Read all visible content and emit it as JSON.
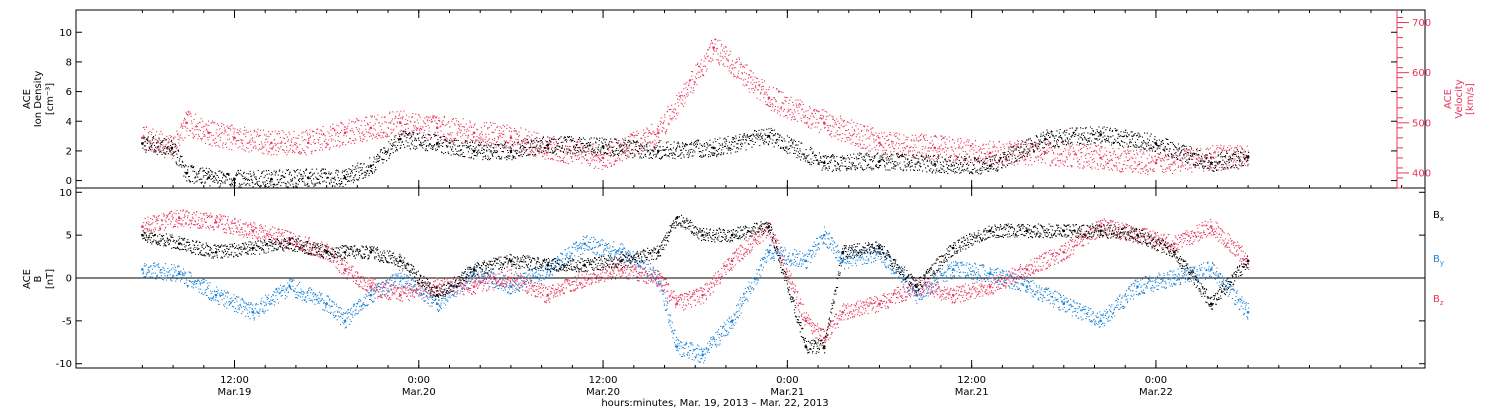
{
  "page": {
    "background": "#ffffff"
  },
  "colors": {
    "black": "#000000",
    "pink": "#e8365d",
    "blue": "#1e84d8"
  },
  "chart_data": [
    {
      "type": "scatter",
      "panel": "top",
      "ylabel_left_lines": [
        "ACE",
        "Ion Density",
        "[cm⁻³]"
      ],
      "ylabel_right_lines": [
        "ACE",
        "Velocity",
        "[km/s]"
      ],
      "ylim_left": [
        -0.5,
        11.5
      ],
      "yticks_left": [
        0,
        2,
        4,
        6,
        8,
        10
      ],
      "ylim_right": [
        370,
        725
      ],
      "yticks_right": [
        400,
        500,
        600,
        700
      ],
      "yminor_right_step": 20,
      "series": [
        {
          "axis": "left",
          "color": "#000000",
          "x": [
            0,
            0.08,
            0.12,
            0.18,
            0.25,
            0.35,
            0.45,
            0.55,
            0.62,
            0.7,
            0.8,
            0.9,
            1.0,
            1.1,
            1.25,
            1.4,
            1.55,
            1.7,
            1.85,
            2.0,
            2.15,
            2.3,
            2.45,
            2.6,
            2.75,
            2.9,
            3.0
          ],
          "y": [
            2.5,
            2.2,
            0.5,
            0.2,
            0.1,
            0.1,
            0.2,
            0.2,
            1.0,
            2.8,
            2.5,
            2.0,
            2.0,
            2.4,
            2.3,
            2.0,
            2.2,
            3.0,
            1.2,
            1.3,
            1.1,
            1.0,
            2.8,
            3.1,
            2.5,
            1.2,
            1.6
          ]
        },
        {
          "axis": "right",
          "color": "#e8365d",
          "x": [
            0,
            0.08,
            0.12,
            0.18,
            0.25,
            0.35,
            0.45,
            0.55,
            0.62,
            0.7,
            0.8,
            0.9,
            1.0,
            1.1,
            1.25,
            1.4,
            1.55,
            1.7,
            1.85,
            2.0,
            2.15,
            2.3,
            2.45,
            2.6,
            2.75,
            2.9,
            3.0
          ],
          "y": [
            470,
            450,
            500,
            480,
            470,
            460,
            460,
            480,
            490,
            500,
            490,
            480,
            470,
            450,
            430,
            480,
            650,
            550,
            500,
            460,
            450,
            440,
            440,
            430,
            420,
            430,
            430
          ]
        }
      ]
    },
    {
      "type": "scatter",
      "panel": "bottom",
      "ylabel_left_lines": [
        "ACE",
        "B",
        "[nT]"
      ],
      "ylim": [
        -10.5,
        10.5
      ],
      "yticks": [
        -10,
        -5,
        0,
        5,
        10
      ],
      "zero_line": true,
      "legend_position": "right",
      "series": [
        {
          "name": "Bx",
          "legend_main": "B",
          "legend_sub": "x",
          "color": "#000000",
          "x": [
            0,
            0.1,
            0.2,
            0.3,
            0.4,
            0.5,
            0.55,
            0.62,
            0.7,
            0.8,
            0.9,
            1.0,
            1.1,
            1.2,
            1.3,
            1.4,
            1.45,
            1.52,
            1.6,
            1.7,
            1.8,
            1.85,
            1.9,
            2.0,
            2.1,
            2.2,
            2.3,
            2.4,
            2.5,
            2.6,
            2.7,
            2.8,
            2.9,
            3.0
          ],
          "y": [
            5,
            4,
            3,
            3.5,
            4,
            3,
            3,
            3,
            2,
            -2,
            1,
            2,
            1.5,
            1.5,
            2,
            3,
            7,
            5,
            5,
            6,
            -8,
            -8,
            3,
            3.5,
            -1,
            3.5,
            5.5,
            5.5,
            5.5,
            5.5,
            5,
            3,
            -3,
            2
          ]
        },
        {
          "name": "By",
          "legend_main": "B",
          "legend_sub": "y",
          "color": "#1e84d8",
          "x": [
            0,
            0.1,
            0.2,
            0.3,
            0.4,
            0.5,
            0.55,
            0.62,
            0.7,
            0.8,
            0.9,
            1.0,
            1.1,
            1.2,
            1.3,
            1.4,
            1.45,
            1.52,
            1.6,
            1.7,
            1.8,
            1.85,
            1.9,
            2.0,
            2.1,
            2.2,
            2.3,
            2.4,
            2.5,
            2.6,
            2.7,
            2.8,
            2.9,
            3.0
          ],
          "y": [
            1,
            0.5,
            -2,
            -4,
            -1,
            -3,
            -5,
            -2,
            0,
            -3,
            0.5,
            -1,
            1,
            4,
            3,
            0,
            -8,
            -9,
            -5,
            3,
            2,
            5,
            2,
            3,
            -2,
            1,
            0.5,
            -1,
            -3,
            -5,
            -1,
            0,
            1,
            -4
          ]
        },
        {
          "name": "Bz",
          "legend_main": "B",
          "legend_sub": "z",
          "color": "#e8365d",
          "x": [
            0,
            0.1,
            0.2,
            0.3,
            0.4,
            0.5,
            0.55,
            0.62,
            0.7,
            0.8,
            0.9,
            1.0,
            1.1,
            1.2,
            1.3,
            1.4,
            1.45,
            1.52,
            1.6,
            1.7,
            1.8,
            1.85,
            1.9,
            2.0,
            2.1,
            2.2,
            2.3,
            2.4,
            2.5,
            2.6,
            2.7,
            2.8,
            2.9,
            3.0
          ],
          "y": [
            6,
            7,
            6.5,
            5.5,
            4.5,
            3,
            1,
            -1,
            -2,
            -1,
            -1,
            0,
            -2,
            0,
            1,
            0,
            -3,
            -2,
            2,
            6,
            -5,
            -7,
            -4,
            -3,
            -1,
            -2,
            -1,
            1,
            3,
            6,
            5,
            4,
            6,
            2
          ]
        }
      ]
    }
  ],
  "x_axis": {
    "xlim": [
      -0.18,
      3.48
    ],
    "major_ticks": [
      {
        "x": 0.25,
        "line1": "12:00",
        "line2": "Mar.19"
      },
      {
        "x": 0.75,
        "line1": "0:00",
        "line2": "Mar.20"
      },
      {
        "x": 1.25,
        "line1": "12:00",
        "line2": "Mar.20"
      },
      {
        "x": 1.75,
        "line1": "0:00",
        "line2": "Mar.21"
      },
      {
        "x": 2.25,
        "line1": "12:00",
        "line2": "Mar.21"
      },
      {
        "x": 2.75,
        "line1": "0:00",
        "line2": "Mar.22"
      }
    ],
    "minor_step": 0.08333333,
    "title": "hours:minutes, Mar. 19, 2013 – Mar. 22, 2013"
  }
}
